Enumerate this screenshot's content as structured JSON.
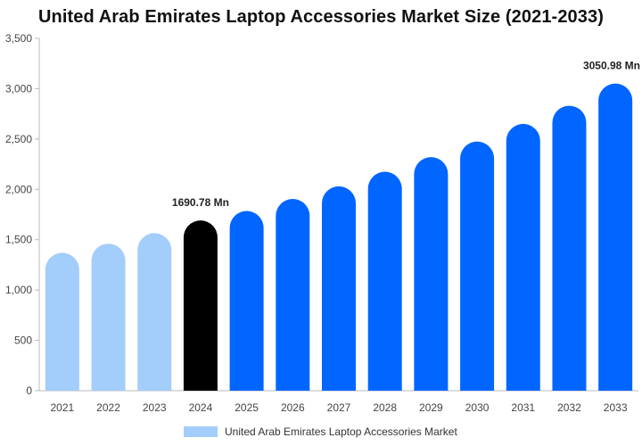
{
  "chart_data": {
    "type": "bar",
    "title": "United Arab Emirates Laptop Accessories Market Size (2021-2033)",
    "categories": [
      "2021",
      "2022",
      "2023",
      "2024",
      "2025",
      "2026",
      "2027",
      "2028",
      "2029",
      "2030",
      "2031",
      "2032",
      "2033"
    ],
    "series": [
      {
        "name": "United Arab Emirates Laptop Accessories Market",
        "values": [
          1370,
          1460,
          1565,
          1690.78,
          1785,
          1905,
          2030,
          2175,
          2320,
          2475,
          2650,
          2830,
          3050.98
        ]
      }
    ],
    "ylim": [
      0,
      3500
    ],
    "yticks": [
      0,
      500,
      1000,
      1500,
      2000,
      2500,
      3000,
      3500
    ],
    "ytick_labels": [
      "0",
      "500",
      "1,000",
      "1,500",
      "2,000",
      "2,500",
      "3,000",
      "3,500"
    ],
    "data_labels": [
      {
        "category": "2024",
        "text": "1690.78 Mn"
      },
      {
        "category": "2033",
        "text": "3050.98 Mn"
      }
    ],
    "colors": {
      "historical": "#a3cdfb",
      "current": "#000000",
      "forecast": "#0066ff",
      "axis": "#bbbbbb"
    },
    "bar_color_groups": [
      "historical",
      "historical",
      "historical",
      "current",
      "forecast",
      "forecast",
      "forecast",
      "forecast",
      "forecast",
      "forecast",
      "forecast",
      "forecast",
      "forecast"
    ],
    "grid": false,
    "legend_position": "bottom"
  }
}
